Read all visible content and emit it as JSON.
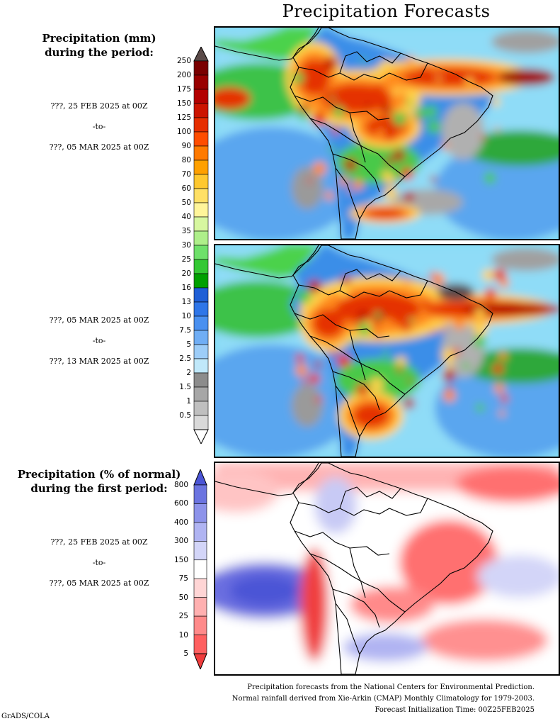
{
  "title": "Precipitation Forecasts",
  "precip_legend": {
    "heading_line1": "Precipitation (mm)",
    "heading_line2": "during the period:",
    "ticks": [
      "250",
      "200",
      "175",
      "150",
      "125",
      "100",
      "90",
      "80",
      "70",
      "60",
      "50",
      "40",
      "35",
      "30",
      "25",
      "20",
      "16",
      "13",
      "10",
      "7.5",
      "5",
      "2.5",
      "2",
      "1.5",
      "1",
      "0.5"
    ],
    "colors": [
      "#5a4a48",
      "#7a0000",
      "#990000",
      "#b30000",
      "#cc1400",
      "#e62e00",
      "#ff4d00",
      "#ff7a00",
      "#ffa000",
      "#ffc830",
      "#ffe066",
      "#fff59a",
      "#d7f7a0",
      "#aeef8a",
      "#6ee06a",
      "#34c834",
      "#00a000",
      "#1f5fd6",
      "#2f76e8",
      "#4a90f0",
      "#70aef5",
      "#9dcdf8",
      "#c0e8fa",
      "#8c8c8c",
      "#a6a6a6",
      "#bfbfbf",
      "#d9d9d9",
      "#ffffff"
    ]
  },
  "periods": [
    {
      "start": "???, 25 FEB 2025 at 00Z",
      "sep": "-to-",
      "end": "???, 05 MAR 2025 at 00Z"
    },
    {
      "start": "???, 05 MAR 2025 at 00Z",
      "sep": "-to-",
      "end": "???, 13 MAR 2025 at 00Z"
    },
    {
      "start": "???, 25 FEB 2025 at 00Z",
      "sep": "-to-",
      "end": "???, 05 MAR 2025 at 00Z"
    }
  ],
  "anomaly_legend": {
    "heading_line1": "Precipitation (% of normal)",
    "heading_line2": "during the first period:",
    "ticks": [
      "800",
      "600",
      "400",
      "300",
      "150",
      "75",
      "50",
      "25",
      "10",
      "5"
    ],
    "colors": [
      "#4b55d6",
      "#6b74e0",
      "#8d93ea",
      "#b0b4f2",
      "#d3d5f8",
      "#ffffff",
      "#ffd5d5",
      "#ffb0b0",
      "#ff8a8a",
      "#ff6060",
      "#f03c3c"
    ]
  },
  "footer": {
    "line1": "Precipitation forecasts from the National Centers for Environmental Prediction.",
    "line2": "Normal rainfall derived from Xie-Arkin (CMAP) Monthly Climatology for 1979-2003.",
    "line3": "Forecast Initialization Time: 00Z25FEB2025"
  },
  "credit": "GrADS/COLA"
}
